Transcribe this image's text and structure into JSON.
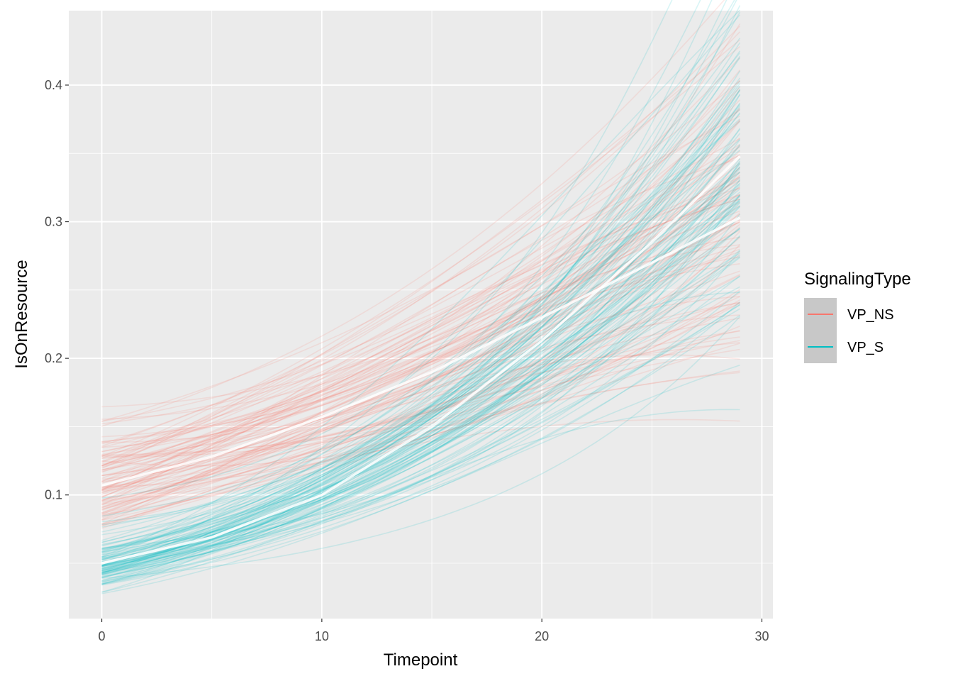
{
  "chart_data": {
    "type": "line",
    "title": "",
    "xlabel": "Timepoint",
    "ylabel": "IsOnResource",
    "xlim": [
      -1.5,
      30.5
    ],
    "ylim": [
      0.0095,
      0.4545
    ],
    "x_ticks": [
      0,
      10,
      20,
      30
    ],
    "x_tick_labels": [
      "0",
      "10",
      "20",
      "30"
    ],
    "y_ticks": [
      0.1,
      0.2,
      0.3,
      0.4
    ],
    "y_tick_labels": [
      "0.1",
      "0.2",
      "0.3",
      "0.4"
    ],
    "grid": true,
    "legend": {
      "title": "SignalingType",
      "placement": "right",
      "entries": [
        "VP_NS",
        "VP_S"
      ]
    },
    "series": [
      {
        "name": "VP_NS",
        "color": "#F8766D",
        "mean_x": [
          0,
          5,
          10,
          15,
          20,
          25,
          29
        ],
        "mean_y": [
          0.107,
          0.128,
          0.157,
          0.19,
          0.23,
          0.27,
          0.303
        ],
        "draws": {
          "count": 100,
          "x_range": [
            0,
            29
          ],
          "logit_intercept_mean": -2.12,
          "logit_intercept_sd": 0.17,
          "logit_slope_mean": 0.0445,
          "logit_slope_sd": 0.008,
          "opacity": 0.15
        }
      },
      {
        "name": "VP_S",
        "color": "#00BFC4",
        "mean_x": [
          0,
          5,
          10,
          15,
          20,
          25,
          29
        ],
        "mean_y": [
          0.05,
          0.069,
          0.1,
          0.15,
          0.213,
          0.285,
          0.348
        ],
        "draws": {
          "count": 100,
          "x_range": [
            0,
            29
          ],
          "logit_intercept_mean": -2.94,
          "logit_intercept_sd": 0.15,
          "logit_slope_mean": 0.0797,
          "logit_slope_sd": 0.007,
          "opacity": 0.15
        }
      }
    ]
  }
}
